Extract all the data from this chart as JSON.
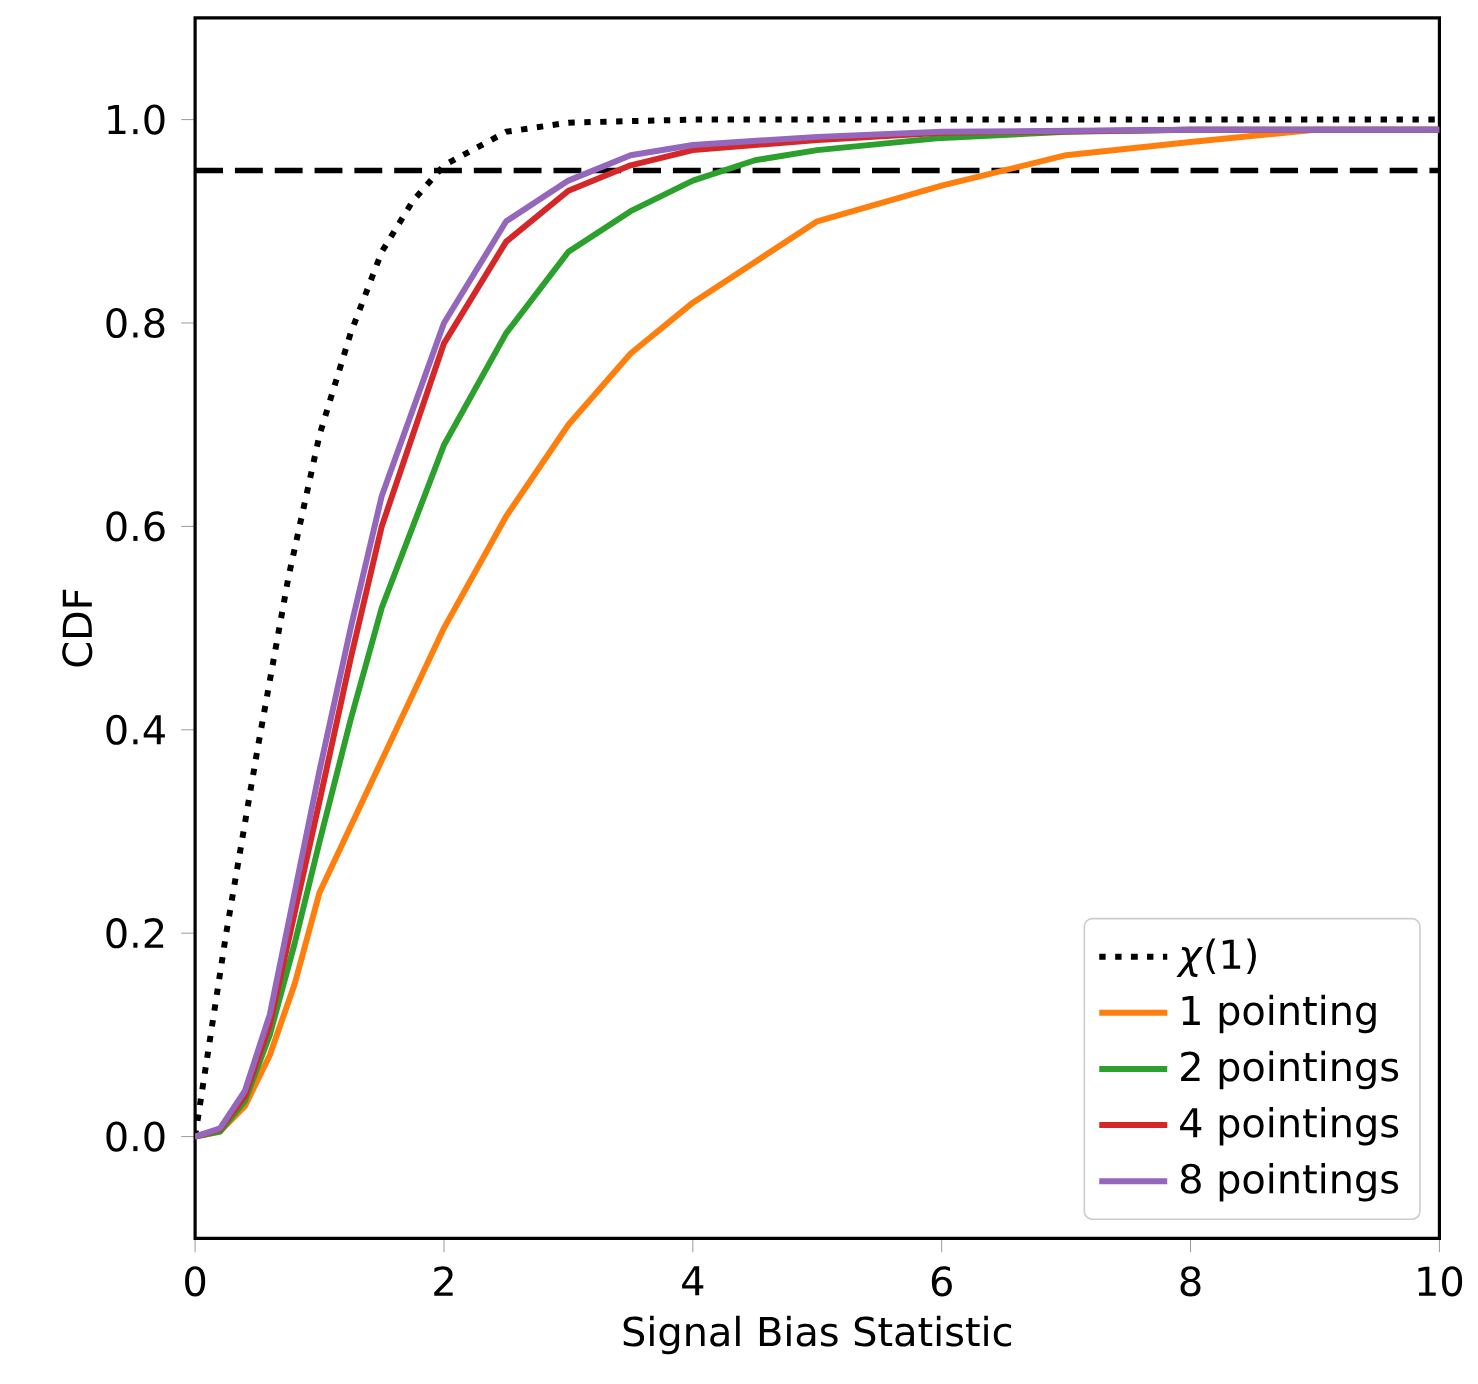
{
  "chart_data": {
    "type": "line",
    "xlabel": "Signal Bias Statistic",
    "ylabel": "CDF",
    "xlim": [
      0,
      10
    ],
    "ylim": [
      -0.1,
      1.1
    ],
    "xticks": [
      0,
      2,
      4,
      6,
      8,
      10
    ],
    "yticks": [
      {
        "value": 0,
        "label": "0.0"
      },
      {
        "value": 0.2,
        "label": "0.2"
      },
      {
        "value": 0.4,
        "label": "0.4"
      },
      {
        "value": 0.6,
        "label": "0.6"
      },
      {
        "value": 0.8,
        "label": "0.8"
      },
      {
        "value": 1,
        "label": "1.0"
      }
    ],
    "legend": "bottom right",
    "grid": false,
    "marker": "none",
    "ref_lines": [
      {
        "axis": "y",
        "value": 0.95,
        "color": "#000000",
        "line_style": "dashed"
      }
    ],
    "series": [
      {
        "name": "*χ*(1)",
        "color": "#000000",
        "line_style": "dotted",
        "x": [
          0,
          0.1,
          0.25,
          0.5,
          0.75,
          1,
          1.25,
          1.5,
          1.75,
          2,
          2.5,
          3,
          4,
          10
        ],
        "values": [
          0,
          0.08,
          0.2,
          0.38,
          0.55,
          0.69,
          0.79,
          0.87,
          0.92,
          0.955,
          0.988,
          0.997,
          1.0,
          1.0
        ]
      },
      {
        "name": "1 pointing",
        "color": "#ff7f0e",
        "line_style": "solid",
        "x": [
          0,
          0.2,
          0.4,
          0.6,
          0.8,
          1,
          1.5,
          2,
          2.5,
          3,
          3.5,
          4,
          5,
          6,
          6.5,
          7,
          8,
          9,
          10
        ],
        "values": [
          0,
          0.005,
          0.03,
          0.08,
          0.15,
          0.24,
          0.37,
          0.5,
          0.61,
          0.7,
          0.77,
          0.82,
          0.9,
          0.935,
          0.95,
          0.965,
          0.978,
          0.99,
          0.99
        ]
      },
      {
        "name": "2 pointings",
        "color": "#2ca02c",
        "line_style": "solid",
        "x": [
          0,
          0.2,
          0.4,
          0.6,
          0.8,
          1,
          1.25,
          1.5,
          2,
          2.5,
          3,
          3.5,
          4,
          4.5,
          5,
          6,
          7,
          8,
          10
        ],
        "values": [
          0,
          0.005,
          0.035,
          0.1,
          0.19,
          0.29,
          0.41,
          0.52,
          0.68,
          0.79,
          0.87,
          0.91,
          0.94,
          0.96,
          0.97,
          0.982,
          0.988,
          0.99,
          0.99
        ]
      },
      {
        "name": "4 pointings",
        "color": "#d62728",
        "line_style": "solid",
        "x": [
          0,
          0.2,
          0.4,
          0.6,
          0.8,
          1,
          1.25,
          1.5,
          2,
          2.5,
          3,
          3.5,
          4,
          5,
          6,
          8,
          10
        ],
        "values": [
          0,
          0.007,
          0.04,
          0.11,
          0.22,
          0.33,
          0.47,
          0.6,
          0.78,
          0.88,
          0.93,
          0.955,
          0.97,
          0.98,
          0.987,
          0.99,
          0.99
        ]
      },
      {
        "name": "8 pointings",
        "color": "#9467bd",
        "line_style": "solid",
        "x": [
          0,
          0.2,
          0.4,
          0.6,
          0.8,
          1,
          1.25,
          1.5,
          2,
          2.5,
          3,
          3.5,
          4,
          5,
          6,
          8,
          10
        ],
        "values": [
          0,
          0.008,
          0.045,
          0.12,
          0.24,
          0.36,
          0.5,
          0.63,
          0.8,
          0.9,
          0.94,
          0.965,
          0.975,
          0.983,
          0.988,
          0.99,
          0.99
        ]
      }
    ]
  }
}
